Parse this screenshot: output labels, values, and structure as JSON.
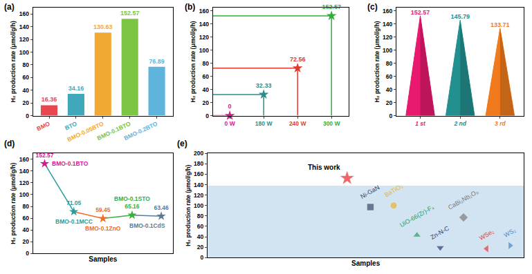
{
  "chart_data": [
    {
      "title": "(a)",
      "type": "bar",
      "y_label": "H₂ production rate (μmol/g/h)",
      "categories": [
        "BMO",
        "BTO",
        "BMO-0.05BTO",
        "BMO-0.1BTO",
        "BMO-0.2BTO"
      ],
      "values": [
        16.36,
        34.16,
        130.63,
        152.57,
        76.89
      ],
      "colors": [
        "#e8474f",
        "#3fa9bb",
        "#f2a934",
        "#7cc443",
        "#5fb4de"
      ],
      "ylim": [
        0,
        170
      ],
      "yticks": [
        0,
        20,
        40,
        60,
        80,
        100,
        120,
        140,
        160
      ],
      "grid": false,
      "data_labels": true
    },
    {
      "title": "(b)",
      "type": "dropline",
      "y_label": "H₂ production rate (μmol/g/h)",
      "categories": [
        "0 W",
        "180 W",
        "240 W",
        "300 W"
      ],
      "values": [
        0,
        32.33,
        72.56,
        152.57
      ],
      "colors": [
        "#d6198f",
        "#2a8f8a",
        "#e03a2f",
        "#2fae3a"
      ],
      "marker": "star",
      "ylim": [
        0,
        165
      ],
      "yticks": [
        0,
        20,
        40,
        60,
        80,
        100,
        120,
        140,
        160
      ],
      "grid": false,
      "data_labels": true
    },
    {
      "title": "(c)",
      "type": "cone",
      "y_label": "H₂ production rate (μmol/g/h)",
      "categories": [
        "1 st",
        "2 nd",
        "3 rd"
      ],
      "values": [
        152.57,
        145.79,
        133.71
      ],
      "colors": [
        "#e8196e",
        "#23908f",
        "#f07a1c"
      ],
      "ylim": [
        0,
        165
      ],
      "yticks": [
        0,
        20,
        40,
        60,
        80,
        100,
        120,
        140,
        160
      ],
      "grid": false,
      "data_labels": true
    },
    {
      "title": "(d)",
      "type": "line",
      "y_label": "H₂ production rate (μmol/g/h)",
      "x_label": "Samples",
      "categories": [
        "BMO-0.1BTO",
        "BMO-0.1MCC",
        "BMO-0.1ZnO",
        "BMO-0.1STO",
        "BMO-0.1CdS"
      ],
      "values": [
        152.57,
        71.05,
        59.45,
        65.16,
        63.46
      ],
      "colors": [
        "#d6198f",
        "#2a9d9a",
        "#f06c2a",
        "#3aae3a",
        "#5a7a9a"
      ],
      "marker": "star",
      "ylim": [
        0,
        170
      ],
      "yticks": [
        0,
        20,
        40,
        60,
        80,
        100,
        120,
        140,
        160
      ],
      "grid": false,
      "data_labels": true,
      "tick_labels": "y"
    },
    {
      "title": "(e)",
      "type": "scatter",
      "y_label": "H₂ production rate (μmol/g/h)",
      "x_label": "Samples",
      "categories": [
        "This work",
        "Ni-GaN",
        "BaTiO₃",
        "UiO-66(Zr)-F₄",
        "Zn-N-C",
        "CaBi₂Nb₂O₉",
        "WSe₂",
        "WS₂"
      ],
      "values": [
        152.57,
        97,
        100,
        43,
        19,
        77,
        17,
        23
      ],
      "colors": [
        "#e8262b",
        "#3d4a6b",
        "#e9b33a",
        "#2e9c6a",
        "#2c3e78",
        "#7b7b7b",
        "#e03a3a",
        "#4a86c9"
      ],
      "markers": [
        "star",
        "square",
        "circle",
        "triangle-up",
        "triangle-down",
        "diamond",
        "triangle-left",
        "triangle-right"
      ],
      "band": [
        0,
        138
      ],
      "ylim": [
        0,
        200
      ],
      "yticks": [
        0,
        20,
        40,
        60,
        80,
        100,
        120,
        140,
        160,
        180,
        200
      ],
      "grid": false,
      "tick_labels": "y"
    }
  ]
}
